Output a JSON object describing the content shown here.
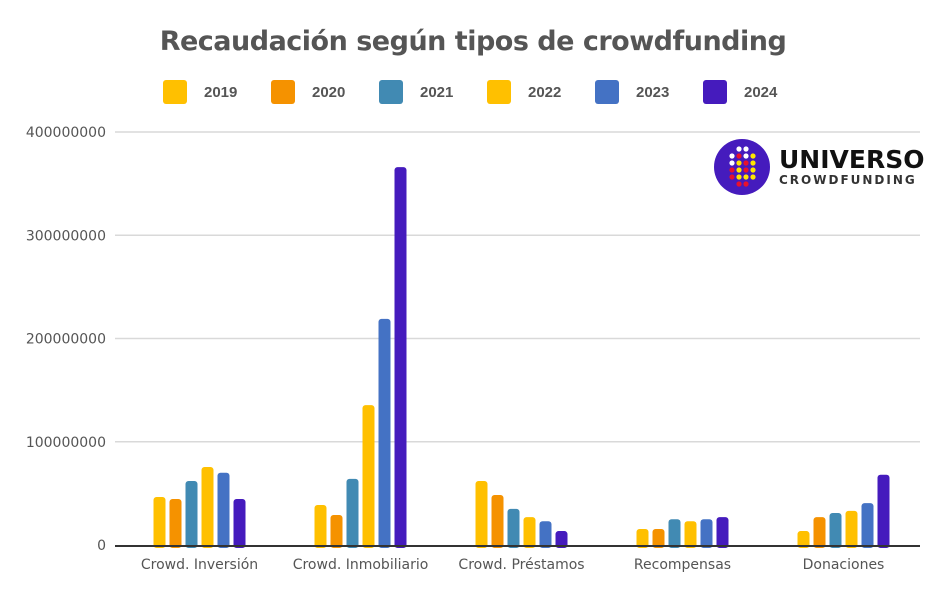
{
  "chart_data": {
    "type": "bar",
    "title": "Recaudación según tipos de crowdfunding",
    "categories": [
      "Crowd. Inversión",
      "Crowd. Inmobiliario",
      "Crowd. Préstamos",
      "Recompensas",
      "Donaciones"
    ],
    "series": [
      {
        "name": "2019",
        "color": "#FFC000",
        "values": [
          46500000,
          38700000,
          62000000,
          15500000,
          13500000
        ]
      },
      {
        "name": "2020",
        "color": "#F59200",
        "values": [
          44500000,
          29000000,
          48400000,
          15500000,
          27000000
        ]
      },
      {
        "name": "2021",
        "color": "#418AB3",
        "values": [
          62000000,
          64000000,
          35000000,
          25000000,
          31000000
        ]
      },
      {
        "name": "2022",
        "color": "#FFC000",
        "values": [
          75500000,
          135500000,
          27000000,
          23000000,
          33000000
        ]
      },
      {
        "name": "2023",
        "color": "#4472C4",
        "values": [
          70000000,
          219000000,
          23000000,
          25000000,
          40500000
        ]
      },
      {
        "name": "2024",
        "color": "#451BBD",
        "values": [
          44500000,
          366000000,
          13500000,
          27000000,
          68000000
        ]
      }
    ],
    "ylim": [
      0,
      400000000
    ],
    "yticks": [
      "0",
      "100000000",
      "200000000",
      "300000000",
      "400000000"
    ],
    "grid": true,
    "legend": "top"
  },
  "logo": {
    "line1": "UNIVERSO",
    "line2": "CROWDFUNDING"
  }
}
